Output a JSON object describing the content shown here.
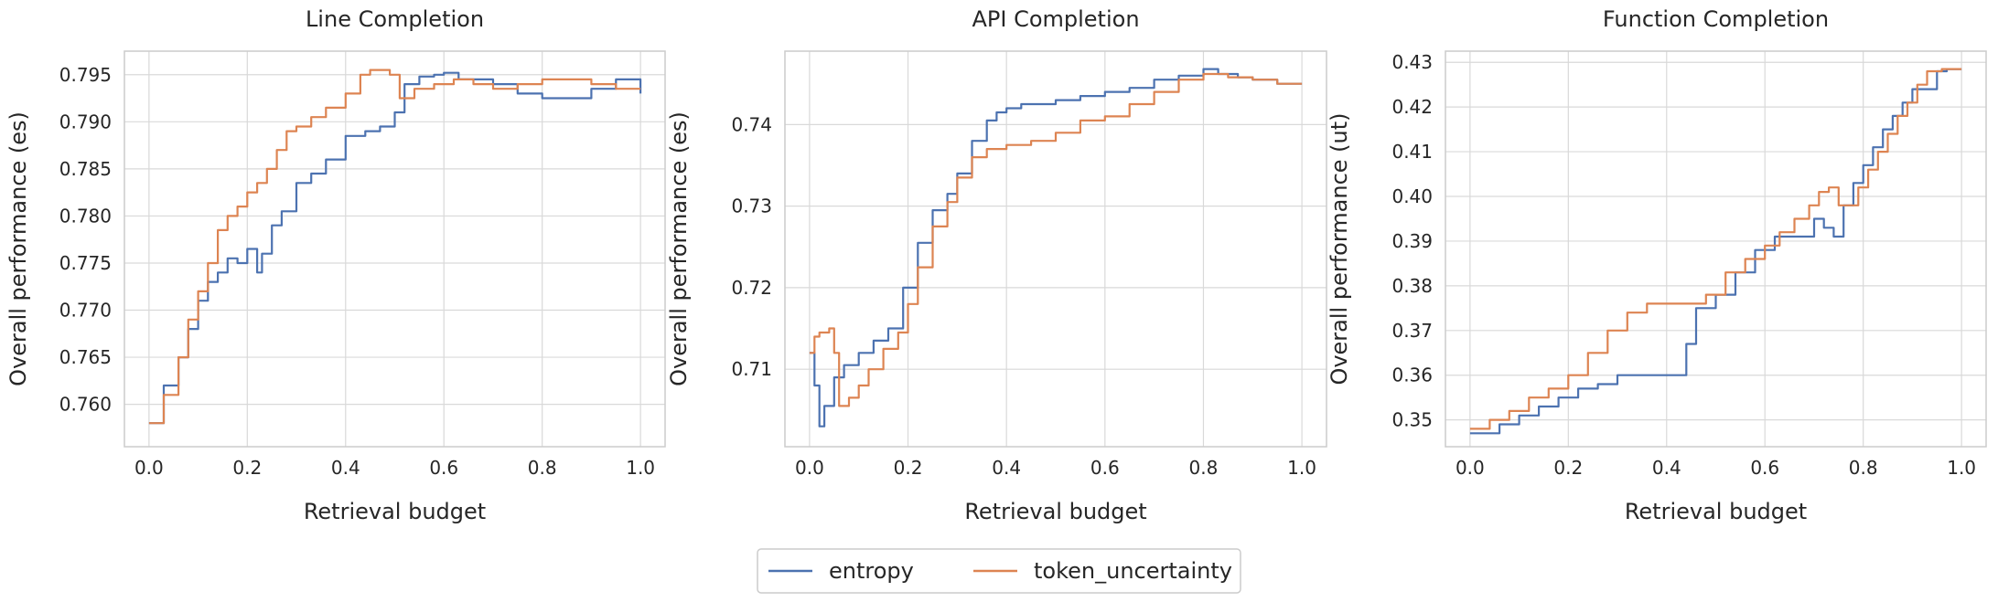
{
  "colors": {
    "entropy": "#4c72b0",
    "token_uncertainty": "#dd8452",
    "grid": "#d9d9d9",
    "frame": "#cccccc"
  },
  "legend": {
    "placement": "bottom-center",
    "entries": [
      "entropy",
      "token_uncertainty"
    ]
  },
  "chart_data": [
    {
      "type": "line",
      "title": "Line Completion",
      "xlabel": "Retrieval budget",
      "ylabel": "Overall performance (es)",
      "xlim": [
        -0.05,
        1.05
      ],
      "ylim": [
        0.7555,
        0.7975
      ],
      "xticks": [
        0.0,
        0.2,
        0.4,
        0.6,
        0.8,
        1.0
      ],
      "xtick_labels": [
        "0.0",
        "0.2",
        "0.4",
        "0.6",
        "0.8",
        "1.0"
      ],
      "yticks": [
        0.76,
        0.765,
        0.77,
        0.775,
        0.78,
        0.785,
        0.79,
        0.795
      ],
      "ytick_labels": [
        "0.760",
        "0.765",
        "0.770",
        "0.775",
        "0.780",
        "0.785",
        "0.790",
        "0.795"
      ],
      "grid": true,
      "series": [
        {
          "name": "entropy",
          "x": [
            0.0,
            0.03,
            0.06,
            0.08,
            0.1,
            0.12,
            0.14,
            0.16,
            0.18,
            0.2,
            0.22,
            0.23,
            0.25,
            0.27,
            0.3,
            0.33,
            0.36,
            0.4,
            0.44,
            0.47,
            0.5,
            0.52,
            0.55,
            0.58,
            0.6,
            0.63,
            0.66,
            0.7,
            0.75,
            0.8,
            0.85,
            0.9,
            0.95,
            1.0
          ],
          "y": [
            0.758,
            0.762,
            0.765,
            0.768,
            0.771,
            0.773,
            0.774,
            0.7755,
            0.775,
            0.7765,
            0.774,
            0.776,
            0.779,
            0.7805,
            0.7835,
            0.7845,
            0.786,
            0.7885,
            0.789,
            0.7895,
            0.791,
            0.794,
            0.7948,
            0.795,
            0.7952,
            0.7945,
            0.7945,
            0.794,
            0.793,
            0.7925,
            0.7925,
            0.7935,
            0.7945,
            0.793
          ]
        },
        {
          "name": "token_uncertainty",
          "x": [
            0.0,
            0.03,
            0.06,
            0.08,
            0.1,
            0.12,
            0.14,
            0.16,
            0.18,
            0.2,
            0.22,
            0.24,
            0.26,
            0.28,
            0.3,
            0.33,
            0.36,
            0.4,
            0.43,
            0.45,
            0.47,
            0.49,
            0.51,
            0.54,
            0.58,
            0.62,
            0.66,
            0.7,
            0.75,
            0.8,
            0.85,
            0.9,
            0.95,
            1.0
          ],
          "y": [
            0.758,
            0.761,
            0.765,
            0.769,
            0.772,
            0.775,
            0.7785,
            0.78,
            0.781,
            0.7825,
            0.7835,
            0.785,
            0.787,
            0.789,
            0.7895,
            0.7905,
            0.7915,
            0.793,
            0.795,
            0.7955,
            0.7955,
            0.795,
            0.7925,
            0.7935,
            0.794,
            0.7945,
            0.794,
            0.7935,
            0.794,
            0.7945,
            0.7945,
            0.794,
            0.7935,
            0.7935
          ]
        }
      ]
    },
    {
      "type": "line",
      "title": "API Completion",
      "xlabel": "Retrieval budget",
      "ylabel": "Overall performance (es)",
      "xlim": [
        -0.05,
        1.05
      ],
      "ylim": [
        0.7005,
        0.749
      ],
      "xticks": [
        0.0,
        0.2,
        0.4,
        0.6,
        0.8,
        1.0
      ],
      "xtick_labels": [
        "0.0",
        "0.2",
        "0.4",
        "0.6",
        "0.8",
        "1.0"
      ],
      "yticks": [
        0.71,
        0.72,
        0.73,
        0.74
      ],
      "ytick_labels": [
        "0.71",
        "0.72",
        "0.73",
        "0.74"
      ],
      "grid": true,
      "series": [
        {
          "name": "entropy",
          "x": [
            0.0,
            0.01,
            0.02,
            0.03,
            0.05,
            0.07,
            0.1,
            0.13,
            0.16,
            0.19,
            0.22,
            0.25,
            0.28,
            0.3,
            0.33,
            0.36,
            0.38,
            0.4,
            0.43,
            0.46,
            0.5,
            0.55,
            0.6,
            0.65,
            0.7,
            0.75,
            0.8,
            0.83,
            0.87,
            0.9,
            0.95,
            1.0
          ],
          "y": [
            0.712,
            0.708,
            0.703,
            0.7055,
            0.709,
            0.7105,
            0.712,
            0.7135,
            0.715,
            0.72,
            0.7255,
            0.7295,
            0.7315,
            0.734,
            0.738,
            0.7405,
            0.7415,
            0.742,
            0.7425,
            0.7425,
            0.743,
            0.7435,
            0.744,
            0.7445,
            0.7455,
            0.746,
            0.7468,
            0.7462,
            0.7458,
            0.7455,
            0.745,
            0.745
          ]
        },
        {
          "name": "token_uncertainty",
          "x": [
            0.0,
            0.01,
            0.02,
            0.04,
            0.05,
            0.06,
            0.08,
            0.1,
            0.12,
            0.15,
            0.18,
            0.2,
            0.22,
            0.25,
            0.28,
            0.3,
            0.33,
            0.36,
            0.4,
            0.45,
            0.5,
            0.55,
            0.6,
            0.65,
            0.7,
            0.75,
            0.8,
            0.85,
            0.9,
            0.95,
            1.0
          ],
          "y": [
            0.712,
            0.714,
            0.7145,
            0.715,
            0.712,
            0.7055,
            0.7065,
            0.708,
            0.71,
            0.7125,
            0.7145,
            0.718,
            0.7225,
            0.7275,
            0.7305,
            0.7335,
            0.736,
            0.737,
            0.7375,
            0.738,
            0.739,
            0.7405,
            0.741,
            0.7425,
            0.744,
            0.7455,
            0.7462,
            0.7458,
            0.7455,
            0.745,
            0.745
          ]
        }
      ]
    },
    {
      "type": "line",
      "title": "Function Completion",
      "xlabel": "Retrieval budget",
      "ylabel": "Overall performance (ut)",
      "xlim": [
        -0.05,
        1.05
      ],
      "ylim": [
        0.344,
        0.4325
      ],
      "xticks": [
        0.0,
        0.2,
        0.4,
        0.6,
        0.8,
        1.0
      ],
      "xtick_labels": [
        "0.0",
        "0.2",
        "0.4",
        "0.6",
        "0.8",
        "1.0"
      ],
      "yticks": [
        0.35,
        0.36,
        0.37,
        0.38,
        0.39,
        0.4,
        0.41,
        0.42,
        0.43
      ],
      "ytick_labels": [
        "0.35",
        "0.36",
        "0.37",
        "0.38",
        "0.39",
        "0.40",
        "0.41",
        "0.42",
        "0.43"
      ],
      "grid": true,
      "series": [
        {
          "name": "entropy",
          "x": [
            0.0,
            0.04,
            0.06,
            0.1,
            0.14,
            0.18,
            0.22,
            0.26,
            0.3,
            0.34,
            0.38,
            0.42,
            0.44,
            0.46,
            0.5,
            0.54,
            0.58,
            0.62,
            0.66,
            0.7,
            0.72,
            0.74,
            0.76,
            0.78,
            0.8,
            0.82,
            0.84,
            0.86,
            0.88,
            0.9,
            0.93,
            0.95,
            0.97,
            1.0
          ],
          "y": [
            0.347,
            0.347,
            0.349,
            0.351,
            0.353,
            0.355,
            0.357,
            0.358,
            0.36,
            0.36,
            0.36,
            0.36,
            0.367,
            0.375,
            0.378,
            0.383,
            0.388,
            0.391,
            0.391,
            0.395,
            0.393,
            0.391,
            0.398,
            0.403,
            0.407,
            0.411,
            0.415,
            0.418,
            0.421,
            0.424,
            0.424,
            0.428,
            0.4285,
            0.4285
          ]
        },
        {
          "name": "token_uncertainty",
          "x": [
            0.0,
            0.04,
            0.08,
            0.12,
            0.16,
            0.2,
            0.24,
            0.28,
            0.32,
            0.36,
            0.4,
            0.44,
            0.48,
            0.52,
            0.56,
            0.6,
            0.63,
            0.66,
            0.69,
            0.71,
            0.73,
            0.75,
            0.77,
            0.79,
            0.81,
            0.83,
            0.85,
            0.87,
            0.89,
            0.91,
            0.93,
            0.96,
            1.0
          ],
          "y": [
            0.348,
            0.35,
            0.352,
            0.355,
            0.357,
            0.36,
            0.365,
            0.37,
            0.374,
            0.376,
            0.376,
            0.376,
            0.378,
            0.383,
            0.386,
            0.389,
            0.392,
            0.395,
            0.398,
            0.401,
            0.402,
            0.398,
            0.398,
            0.402,
            0.406,
            0.41,
            0.414,
            0.418,
            0.421,
            0.425,
            0.428,
            0.4285,
            0.4285
          ]
        }
      ]
    }
  ]
}
